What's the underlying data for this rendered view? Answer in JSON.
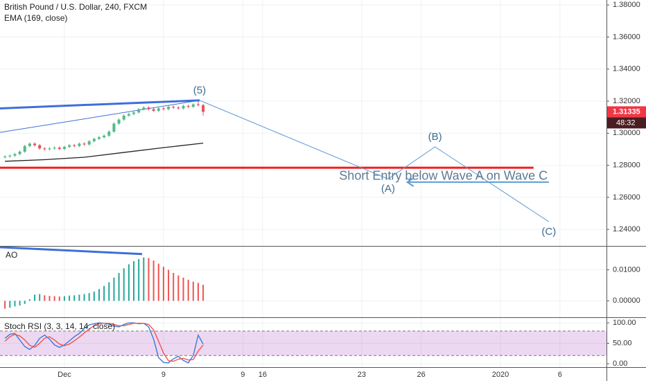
{
  "chart_data": [
    {
      "type": "candlestick",
      "title": "British Pound / U.S. Dollar, 240, FXCM",
      "subtitle": "EMA (169, close)",
      "x": [
        -3,
        -2.75,
        -2.5,
        -2.25,
        -2,
        -1.75,
        -1.5,
        -1.25,
        -1,
        -0.75,
        -0.5,
        -0.25,
        0,
        0.25,
        0.5,
        0.75,
        1,
        1.25,
        1.5,
        1.75,
        2,
        2.25,
        2.5,
        2.75,
        3,
        3.25,
        3.5,
        3.75,
        4,
        4.25,
        4.5,
        4.75,
        5,
        5.25,
        5.5,
        5.75,
        6,
        6.25,
        6.5,
        6.75,
        7
      ],
      "open": [
        1.285,
        1.2855,
        1.286,
        1.287,
        1.2885,
        1.292,
        1.2935,
        1.2925,
        1.2905,
        1.29,
        1.2905,
        1.291,
        1.2902,
        1.2915,
        1.2925,
        1.292,
        1.2935,
        1.293,
        1.295,
        1.2965,
        1.2975,
        1.2985,
        1.301,
        1.306,
        1.3085,
        1.311,
        1.312,
        1.313,
        1.315,
        1.316,
        1.315,
        1.314,
        1.3155,
        1.315,
        1.3165,
        1.316,
        1.3155,
        1.317,
        1.3165,
        1.318,
        1.3175
      ],
      "high": [
        1.2863,
        1.2868,
        1.2878,
        1.2893,
        1.2928,
        1.2943,
        1.2943,
        1.2933,
        1.2913,
        1.2913,
        1.2918,
        1.2918,
        1.2923,
        1.2933,
        1.2933,
        1.2943,
        1.2943,
        1.2958,
        1.2973,
        1.2983,
        1.2993,
        1.3018,
        1.3068,
        1.3093,
        1.3118,
        1.3128,
        1.3138,
        1.3158,
        1.3168,
        1.3168,
        1.3158,
        1.3163,
        1.3163,
        1.3173,
        1.3173,
        1.3168,
        1.3178,
        1.3178,
        1.3188,
        1.32,
        1.3183
      ],
      "low": [
        1.2842,
        1.2847,
        1.2852,
        1.2862,
        1.2877,
        1.2912,
        1.2917,
        1.2897,
        1.2892,
        1.2892,
        1.2897,
        1.2894,
        1.2894,
        1.2907,
        1.2912,
        1.2912,
        1.2922,
        1.2922,
        1.2942,
        1.2957,
        1.2967,
        1.2977,
        1.3002,
        1.3052,
        1.3077,
        1.3102,
        1.3112,
        1.3122,
        1.3142,
        1.3142,
        1.3132,
        1.3132,
        1.3142,
        1.3142,
        1.3152,
        1.3147,
        1.3147,
        1.3157,
        1.3157,
        1.3167,
        1.311
      ],
      "close": [
        1.2855,
        1.286,
        1.287,
        1.2885,
        1.292,
        1.2935,
        1.2925,
        1.2905,
        1.29,
        1.2905,
        1.291,
        1.2902,
        1.2915,
        1.2925,
        1.292,
        1.2935,
        1.293,
        1.295,
        1.2965,
        1.2975,
        1.2985,
        1.301,
        1.306,
        1.3085,
        1.311,
        1.312,
        1.313,
        1.315,
        1.316,
        1.315,
        1.314,
        1.3155,
        1.315,
        1.3165,
        1.316,
        1.3155,
        1.317,
        1.3165,
        1.318,
        1.3175,
        1.31335
      ],
      "up_color": "#53b987",
      "down_color": "#eb4d5c",
      "ema": {
        "color": "#222222",
        "x": [
          -3,
          -1,
          1,
          3,
          5,
          7
        ],
        "values": [
          1.2825,
          1.2835,
          1.285,
          1.288,
          1.291,
          1.2938
        ]
      },
      "xlim": [
        -3.25,
        27.35
      ],
      "ylim": [
        1.2297,
        1.3831
      ],
      "xticks": [
        {
          "value": 0,
          "label": "Dec"
        },
        9,
        {
          "value": 5,
          "label": "9"
        },
        {
          "value": 10,
          "label": "16"
        },
        {
          "value": 15,
          "label": "23"
        },
        {
          "value": 18,
          "label": "26"
        },
        {
          "value": 22,
          "label": "2020"
        },
        {
          "value": 25,
          "label": "6"
        }
      ],
      "yticks": [
        {
          "value": 1.38,
          "label": "1.38000"
        },
        {
          "value": 1.36,
          "label": "1.36000"
        },
        {
          "value": 1.34,
          "label": "1.34000"
        },
        {
          "value": 1.32,
          "label": "1.32000"
        },
        {
          "value": 1.3,
          "label": "1.30000"
        },
        {
          "value": 1.28,
          "label": "1.28000"
        },
        {
          "value": 1.26,
          "label": "1.26000"
        },
        {
          "value": 1.24,
          "label": "1.24000"
        }
      ],
      "grid": true,
      "last_price": {
        "value": 1.31335,
        "label": "1.31335",
        "color": "#f23645"
      },
      "countdown": "48:32",
      "trend_lines": [
        {
          "color": "#3d6fd9",
          "width": 3,
          "x": [
            -3.25,
            6.82
          ],
          "y": [
            1.3155,
            1.3205
          ]
        },
        {
          "color": "#3d6fd9",
          "width": 1,
          "x": [
            -3.25,
            6.82
          ],
          "y": [
            1.3005,
            1.3205
          ]
        },
        {
          "color": "#f21c1c",
          "width": 3,
          "x": [
            -3.25,
            23.67
          ],
          "y": [
            1.2785,
            1.2785
          ]
        }
      ],
      "waves": {
        "color": "#5b9bd5",
        "label_color": "#3a6e8f",
        "labels": [
          "(5)",
          "(A)",
          "(B)",
          "(C)"
        ],
        "x": [
          6.82,
          16.33,
          18.7,
          24.44
        ],
        "y": [
          1.3205,
          1.2715,
          1.2915,
          1.2448
        ]
      },
      "arrow": {
        "color": "#5b9bd5",
        "text": "Short Entry below Wave A on Wave C",
        "text_color": "#5d7a96",
        "x": [
          24.44,
          17.3
        ],
        "y": [
          1.2695,
          1.2695
        ]
      }
    },
    {
      "type": "bar",
      "title": "AO",
      "x": [
        -3,
        -2.75,
        -2.5,
        -2.25,
        -2,
        -1.75,
        -1.5,
        -1.25,
        -1,
        -0.75,
        -0.5,
        -0.25,
        0,
        0.25,
        0.5,
        0.75,
        1,
        1.25,
        1.5,
        1.75,
        2,
        2.25,
        2.5,
        2.75,
        3,
        3.25,
        3.5,
        3.75,
        4,
        4.25,
        4.5,
        4.75,
        5,
        5.25,
        5.5,
        5.75,
        6,
        6.25,
        6.5,
        6.75,
        7
      ],
      "values": [
        -0.0025,
        -0.0022,
        -0.0018,
        -0.0015,
        -0.001,
        0.0005,
        0.002,
        0.0022,
        0.0018,
        0.0016,
        0.0015,
        0.0014,
        0.0015,
        0.0017,
        0.0018,
        0.002,
        0.0022,
        0.0025,
        0.003,
        0.0038,
        0.0048,
        0.006,
        0.0075,
        0.009,
        0.0105,
        0.0118,
        0.0128,
        0.0135,
        0.014,
        0.0138,
        0.013,
        0.012,
        0.011,
        0.01,
        0.009,
        0.0082,
        0.0075,
        0.0068,
        0.0062,
        0.0058,
        0.0052
      ],
      "up_color": "#26a69a",
      "down_color": "#ef5350",
      "xlim": [
        -3.25,
        27.35
      ],
      "ylim": [
        -0.0053,
        0.0175
      ],
      "yticks": [
        {
          "value": 0.01,
          "label": "0.01000"
        },
        {
          "value": 0,
          "label": "0.00000"
        }
      ],
      "trend_lines": [
        {
          "color": "#3d6fd9",
          "width": 3,
          "x": [
            -3.25,
            3.92
          ],
          "y": [
            0.0173,
            0.0151
          ]
        }
      ]
    },
    {
      "type": "line",
      "title": "Stoch RSI (3, 3, 14, 14, close)",
      "x": [
        -3,
        -2.75,
        -2.5,
        -2.25,
        -2,
        -1.75,
        -1.5,
        -1.25,
        -1,
        -0.75,
        -0.5,
        -0.25,
        0,
        0.25,
        0.5,
        0.75,
        1,
        1.25,
        1.5,
        1.75,
        2,
        2.25,
        2.5,
        2.75,
        3,
        3.25,
        3.5,
        3.75,
        4,
        4.25,
        4.5,
        4.75,
        5,
        5.25,
        5.5,
        5.75,
        6,
        6.25,
        6.5,
        6.75,
        7
      ],
      "series": [
        {
          "color": "#3c78d8",
          "values": [
            62,
            72,
            74,
            58,
            42,
            35,
            45,
            62,
            70,
            60,
            46,
            40,
            46,
            56,
            66,
            74,
            86,
            95,
            98,
            100,
            99,
            97,
            92,
            90,
            96,
            100,
            100,
            98,
            99,
            90,
            60,
            15,
            3,
            2,
            12,
            18,
            8,
            2,
            20,
            70,
            48
          ]
        },
        {
          "color": "#ef5350",
          "values": [
            55,
            66,
            72,
            68,
            58,
            45,
            40,
            50,
            62,
            66,
            58,
            48,
            44,
            48,
            56,
            65,
            75,
            85,
            93,
            98,
            99,
            99,
            96,
            93,
            93,
            96,
            99,
            99,
            99,
            96,
            83,
            55,
            26,
            7,
            6,
            11,
            13,
            9,
            10,
            31,
            46
          ]
        }
      ],
      "band": [
        20,
        80
      ],
      "band_color": "#9c27b0",
      "xlim": [
        -3.25,
        27.35
      ],
      "ylim": [
        -8.5,
        112
      ],
      "yticks": [
        {
          "value": 100,
          "label": "100.00"
        },
        {
          "value": 50,
          "label": "50.00"
        },
        {
          "value": 0,
          "label": "0.00"
        }
      ]
    }
  ]
}
